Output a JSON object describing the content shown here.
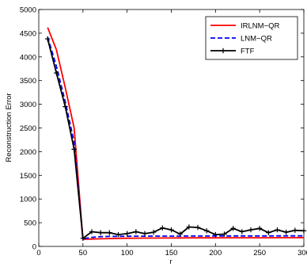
{
  "chart_data": {
    "type": "line",
    "title": "",
    "xlabel": "r",
    "ylabel": "Reconstruction Error",
    "xlim": [
      0,
      300
    ],
    "ylim": [
      0,
      5000
    ],
    "xticks": [
      0,
      50,
      100,
      150,
      200,
      250,
      300
    ],
    "yticks": [
      0,
      500,
      1000,
      1500,
      2000,
      2500,
      3000,
      3500,
      4000,
      4500,
      5000
    ],
    "grid": false,
    "legend_position": "top-right",
    "series": [
      {
        "name": "IRLNM−QR",
        "color": "#ff0000",
        "line_style": "solid",
        "marker": "none",
        "x": [
          10,
          20,
          30,
          40,
          50,
          60,
          70,
          80,
          90,
          100,
          110,
          120,
          130,
          140,
          150,
          160,
          170,
          180,
          190,
          200,
          210,
          220,
          230,
          240,
          250,
          260,
          270,
          280,
          290,
          300
        ],
        "y": [
          4620,
          4150,
          3350,
          2500,
          150,
          155,
          160,
          165,
          170,
          172,
          174,
          175,
          176,
          177,
          178,
          179,
          180,
          180,
          181,
          181,
          182,
          182,
          182,
          183,
          183,
          183,
          184,
          184,
          184,
          185
        ]
      },
      {
        "name": "LNM−QR",
        "color": "#0000ff",
        "line_style": "dashed",
        "marker": "none",
        "x": [
          10,
          20,
          30,
          40,
          50,
          60,
          70,
          80,
          90,
          100,
          110,
          120,
          130,
          140,
          150,
          160,
          170,
          180,
          190,
          200,
          210,
          220,
          230,
          240,
          250,
          260,
          270,
          280,
          290,
          300
        ],
        "y": [
          4420,
          3800,
          3050,
          2200,
          160,
          190,
          205,
          210,
          212,
          214,
          215,
          216,
          217,
          217,
          218,
          218,
          219,
          219,
          219,
          220,
          220,
          220,
          221,
          221,
          221,
          221,
          222,
          222,
          222,
          222
        ]
      },
      {
        "name": "FTF",
        "color": "#000000",
        "line_style": "solid",
        "marker": "plus",
        "x": [
          10,
          20,
          30,
          40,
          50,
          60,
          70,
          80,
          90,
          100,
          110,
          120,
          130,
          140,
          150,
          160,
          170,
          180,
          190,
          200,
          210,
          220,
          230,
          240,
          250,
          260,
          270,
          280,
          290,
          300
        ],
        "y": [
          4380,
          3660,
          2950,
          2050,
          170,
          310,
          290,
          290,
          250,
          270,
          310,
          270,
          300,
          390,
          350,
          260,
          410,
          400,
          330,
          250,
          260,
          380,
          310,
          350,
          380,
          290,
          350,
          300,
          340,
          330
        ]
      }
    ]
  }
}
